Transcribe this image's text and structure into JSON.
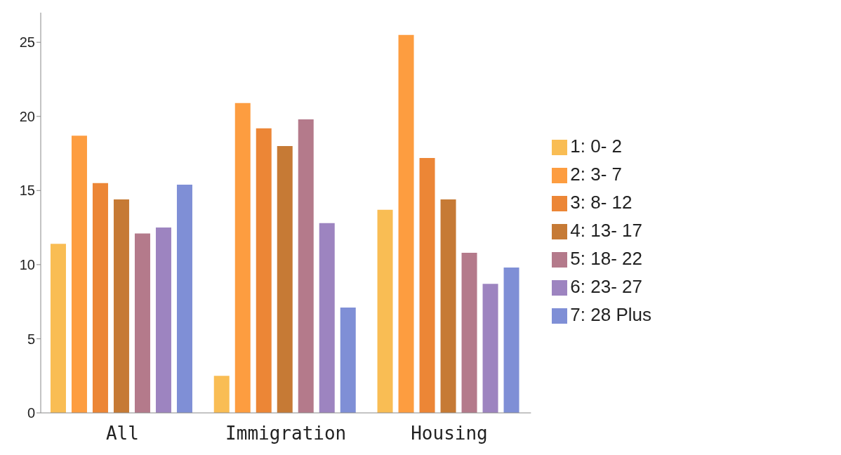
{
  "chart_data": {
    "type": "bar",
    "categories": [
      "All",
      "Immigration",
      "Housing"
    ],
    "series": [
      {
        "name": "1: 0- 2",
        "color": "#f9bd54",
        "values": [
          11.4,
          2.5,
          13.7
        ]
      },
      {
        "name": "2: 3- 7",
        "color": "#fd9d40",
        "values": [
          18.7,
          20.9,
          25.5
        ]
      },
      {
        "name": "3: 8- 12",
        "color": "#ec8636",
        "values": [
          15.5,
          19.2,
          17.2
        ]
      },
      {
        "name": "4: 13- 17",
        "color": "#c67a35",
        "values": [
          14.4,
          18.0,
          14.4
        ]
      },
      {
        "name": "5: 18- 22",
        "color": "#b47a8b",
        "values": [
          12.1,
          19.8,
          10.8
        ]
      },
      {
        "name": "6: 23- 27",
        "color": "#9d84c0",
        "values": [
          12.5,
          12.8,
          8.7
        ]
      },
      {
        "name": "7: 28 Plus",
        "color": "#7f8fd6",
        "values": [
          15.4,
          7.1,
          9.8
        ]
      }
    ],
    "ylim": [
      0,
      27
    ],
    "yticks": [
      0,
      5,
      10,
      15,
      20,
      25
    ],
    "grid": false,
    "legend": "right"
  }
}
